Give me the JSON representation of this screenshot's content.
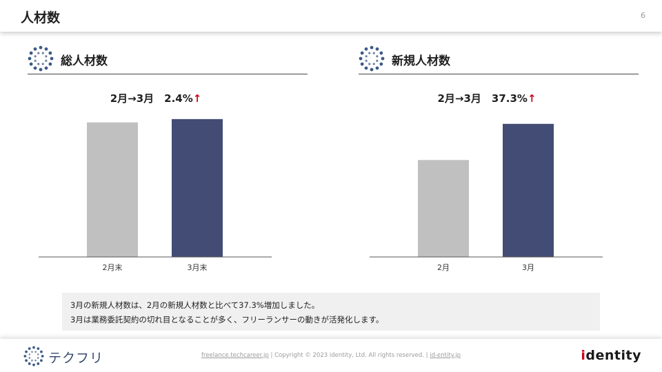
{
  "header": {
    "title": "人材数",
    "page_number": "6"
  },
  "sections": [
    {
      "title": "総人材数"
    },
    {
      "title": "新規人材数"
    }
  ],
  "chart_data": [
    {
      "type": "bar",
      "headline_period": "2月→3月　2.4%",
      "headline_arrow": "↑",
      "categories": [
        "2月末",
        "3月末"
      ],
      "values": [
        0.93,
        0.953
      ],
      "ylim": [
        0,
        1
      ],
      "colors": [
        "#c0c0c0",
        "#434c74"
      ],
      "grid": false
    },
    {
      "type": "bar",
      "headline_period": "2月→3月　37.3%",
      "headline_arrow": "↑",
      "categories": [
        "2月",
        "3月"
      ],
      "values": [
        0.67,
        0.92
      ],
      "ylim": [
        0,
        1
      ],
      "colors": [
        "#c0c0c0",
        "#434c74"
      ],
      "grid": false
    }
  ],
  "note": {
    "line1": "3月の新規人材数は、2月の新規人材数と比べて37.3%増加しました。",
    "line2": "3月は業務委託契約の切れ目となることが多く、フリーランサーの動きが活発化します。"
  },
  "footer": {
    "logo_text": "テクフリ",
    "link1": "freelance.techcareer.jp",
    "sep1": "  |  ",
    "copyright": "Copyright © 2023 identity, Ltd. All rights reserved.",
    "sep2": "  |  ",
    "link2": "id-entity.jp",
    "brand_i": "i",
    "brand_rest": "dentity"
  },
  "icon_colors": {
    "dots": "#3e5a86"
  }
}
